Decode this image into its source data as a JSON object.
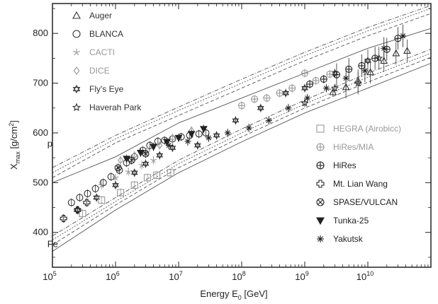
{
  "chart_data": {
    "type": "scatter",
    "xlabel": {
      "main": "Energy E",
      "sub": "0",
      "unit": " [GeV]"
    },
    "ylabel": {
      "main": "X",
      "sub": "max",
      "unit": " [g/cm",
      "sup": "2",
      "close": "]"
    },
    "xscale": "log",
    "xlim": [
      100000,
      100000000000
    ],
    "ylim": [
      330,
      860
    ],
    "x_ticks": [
      {
        "base": "10",
        "exp": "5",
        "value": 100000
      },
      {
        "base": "10",
        "exp": "6",
        "value": 1000000
      },
      {
        "base": "10",
        "exp": "7",
        "value": 10000000
      },
      {
        "base": "10",
        "exp": "8",
        "value": 100000000
      },
      {
        "base": "10",
        "exp": "9",
        "value": 1000000000
      },
      {
        "base": "10",
        "exp": "10",
        "value": 10000000000
      }
    ],
    "y_ticks": [
      "400",
      "500",
      "600",
      "700",
      "800"
    ],
    "y_tick_values": [
      400,
      500,
      600,
      700,
      800
    ],
    "annotations": [
      {
        "text": "p",
        "x": 180000,
        "y": 578
      },
      {
        "text": "Fe",
        "x": 180000,
        "y": 376
      }
    ],
    "legend_left": [
      {
        "label": "Auger",
        "marker": "triangle",
        "color": "#333333"
      },
      {
        "label": "BLANCA",
        "marker": "circle",
        "color": "#333333"
      },
      {
        "label": "CACTI",
        "marker": "asterisk5",
        "color": "#999999"
      },
      {
        "label": "DICE",
        "marker": "diamond",
        "color": "#999999"
      },
      {
        "label": "Fly's Eye",
        "marker": "star6",
        "color": "#333333"
      },
      {
        "label": "Haverah Park",
        "marker": "star5",
        "color": "#333333"
      }
    ],
    "legend_right": [
      {
        "label": "HEGRA (Airobicc)",
        "marker": "square",
        "color": "#999999"
      },
      {
        "label": "HiRes/MIA",
        "marker": "circleplus",
        "color": "#999999"
      },
      {
        "label": "HiRes",
        "marker": "circleplus",
        "color": "#222222"
      },
      {
        "label": "Mt. Lian Wang",
        "marker": "cross",
        "color": "#222222"
      },
      {
        "label": "SPASE/VULCAN",
        "marker": "circlex",
        "color": "#222222"
      },
      {
        "label": "Tunka-25",
        "marker": "invtriangle",
        "color": "#222222"
      },
      {
        "label": "Yakutsk",
        "marker": "asterisk",
        "color": "#222222"
      }
    ],
    "proton_curves": [
      [
        [
          100000,
          500
        ],
        [
          1000000,
          552
        ],
        [
          10000000,
          620
        ],
        [
          100000000,
          670
        ],
        [
          1000000000,
          720
        ],
        [
          10000000000,
          770
        ],
        [
          100000000000,
          810
        ]
      ],
      [
        [
          100000,
          510
        ],
        [
          1000000,
          580
        ],
        [
          10000000,
          635
        ],
        [
          100000000,
          690
        ],
        [
          1000000000,
          745
        ],
        [
          10000000000,
          795
        ],
        [
          100000000000,
          840
        ]
      ],
      [
        [
          100000,
          520
        ],
        [
          1000000,
          588
        ],
        [
          10000000,
          645
        ],
        [
          100000000,
          700
        ],
        [
          1000000000,
          755
        ],
        [
          10000000000,
          805
        ],
        [
          100000000000,
          850
        ]
      ],
      [
        [
          100000,
          530
        ],
        [
          1000000,
          595
        ],
        [
          10000000,
          652
        ],
        [
          100000000,
          708
        ],
        [
          1000000000,
          762
        ],
        [
          10000000000,
          812
        ],
        [
          100000000000,
          856
        ]
      ]
    ],
    "iron_curves": [
      [
        [
          100000,
          362
        ],
        [
          1000000,
          445
        ],
        [
          10000000,
          520
        ],
        [
          100000000,
          582
        ],
        [
          1000000000,
          640
        ],
        [
          10000000000,
          690
        ],
        [
          100000000000,
          740
        ]
      ],
      [
        [
          100000,
          375
        ],
        [
          1000000,
          455
        ],
        [
          10000000,
          530
        ],
        [
          100000000,
          592
        ],
        [
          1000000000,
          650
        ],
        [
          10000000000,
          702
        ],
        [
          100000000000,
          752
        ]
      ],
      [
        [
          100000,
          385
        ],
        [
          1000000,
          462
        ],
        [
          10000000,
          538
        ],
        [
          100000000,
          600
        ],
        [
          1000000000,
          658
        ],
        [
          10000000000,
          712
        ],
        [
          100000000000,
          760
        ]
      ],
      [
        [
          100000,
          393
        ],
        [
          1000000,
          470
        ],
        [
          10000000,
          545
        ],
        [
          100000000,
          608
        ],
        [
          1000000000,
          666
        ],
        [
          10000000000,
          720
        ],
        [
          100000000000,
          768
        ]
      ]
    ],
    "series": [
      {
        "name": "Auger",
        "marker": "triangle",
        "color": "#333333",
        "points": [
          [
            2800000000,
            682
          ],
          [
            4500000000,
            692
          ],
          [
            7000000000,
            705
          ],
          [
            11000000000,
            722
          ],
          [
            18000000000,
            745
          ],
          [
            28000000000,
            760
          ],
          [
            42000000000,
            765
          ]
        ]
      },
      {
        "name": "BLANCA",
        "marker": "circle",
        "color": "#333333",
        "points": [
          [
            200000,
            460
          ],
          [
            270000,
            470
          ],
          [
            360000,
            478
          ],
          [
            480000,
            488
          ],
          [
            640000,
            500
          ],
          [
            850000,
            512
          ],
          [
            1150000,
            525
          ],
          [
            1500000,
            540
          ],
          [
            2000000,
            552
          ],
          [
            2700000,
            565
          ],
          [
            3500000,
            575
          ],
          [
            4700000,
            583
          ],
          [
            6000000,
            585
          ],
          [
            8000000,
            588
          ],
          [
            11000000,
            592
          ],
          [
            15000000,
            595
          ],
          [
            21000000,
            598
          ],
          [
            27000000,
            600
          ]
        ]
      },
      {
        "name": "CACTI",
        "marker": "asterisk5",
        "color": "#999999",
        "points": [
          [
            600000,
            495
          ],
          [
            1000000,
            510
          ],
          [
            1600000,
            522
          ],
          [
            2600000,
            535
          ],
          [
            4000000,
            545
          ]
        ]
      },
      {
        "name": "DICE",
        "marker": "diamond",
        "color": "#999999",
        "points": [
          [
            1200000,
            545
          ],
          [
            2000000,
            555
          ],
          [
            3200000,
            565
          ],
          [
            5000000,
            575
          ],
          [
            8000000,
            590
          ],
          [
            16000000,
            605
          ]
        ]
      },
      {
        "name": "Fly's Eye",
        "marker": "star6",
        "color": "#333333",
        "points": [
          [
            250000,
            445
          ],
          [
            500000,
            470
          ],
          [
            1000000,
            495
          ],
          [
            2000000,
            520
          ],
          [
            3000000,
            538
          ],
          [
            5000000,
            555
          ],
          [
            8000000,
            570
          ],
          [
            20000000,
            575
          ],
          [
            40000000,
            595
          ],
          [
            80000000,
            625
          ],
          [
            200000000,
            650
          ],
          [
            500000000,
            680
          ],
          [
            1000000000,
            690
          ],
          [
            3000000000,
            720
          ],
          [
            10000000000,
            745
          ]
        ]
      },
      {
        "name": "Haverah Park",
        "marker": "star5",
        "color": "#333333",
        "points": [
          [
            1000000000,
            660
          ],
          [
            3000000000,
            690
          ],
          [
            7000000000,
            700
          ],
          [
            15000000000,
            750
          ]
        ]
      },
      {
        "name": "HEGRA (Airobicc)",
        "marker": "square",
        "color": "#999999",
        "points": [
          [
            300000,
            438
          ],
          [
            600000,
            465
          ],
          [
            1200000,
            480
          ],
          [
            2000000,
            495
          ],
          [
            3200000,
            510
          ],
          [
            4500000,
            515
          ],
          [
            7500000,
            520
          ]
        ]
      },
      {
        "name": "HiRes/MIA",
        "marker": "circleplus",
        "color": "#999999",
        "points": [
          [
            100000000,
            655
          ],
          [
            160000000,
            668
          ],
          [
            250000000,
            670
          ],
          [
            400000000,
            680
          ],
          [
            630000000,
            690
          ],
          [
            1000000000,
            720
          ],
          [
            1500000000,
            705
          ],
          [
            2500000000,
            718
          ]
        ]
      },
      {
        "name": "HiRes",
        "marker": "circleplus",
        "color": "#222222",
        "points": [
          [
            1200000000,
            698
          ],
          [
            2000000000,
            708
          ],
          [
            3200000000,
            717
          ],
          [
            5000000000,
            728
          ],
          [
            8000000000,
            735
          ],
          [
            13000000000,
            750
          ],
          [
            20000000000,
            768
          ],
          [
            30000000000,
            790
          ]
        ]
      },
      {
        "name": "Mt. Lian Wang",
        "marker": "cross",
        "color": "#222222",
        "points": [
          [
            150000,
            428
          ],
          [
            250000,
            445
          ],
          [
            350000,
            460
          ]
        ]
      },
      {
        "name": "SPASE/VULCAN",
        "marker": "circlex",
        "color": "#222222",
        "points": [
          [
            1100000,
            530
          ],
          [
            1800000,
            545
          ],
          [
            3000000,
            558
          ]
        ]
      },
      {
        "name": "Tunka-25",
        "marker": "invtriangle",
        "color": "#222222",
        "points": [
          [
            1500000,
            548
          ],
          [
            2500000,
            560
          ],
          [
            4000000,
            572
          ],
          [
            6500000,
            582
          ],
          [
            10000000,
            590
          ],
          [
            16000000,
            598
          ],
          [
            25000000,
            608
          ]
        ]
      },
      {
        "name": "Yakutsk",
        "marker": "asterisk",
        "color": "#222222",
        "points": [
          [
            7000000,
            575
          ],
          [
            14000000,
            583
          ],
          [
            30000000,
            590
          ],
          [
            60000000,
            600
          ],
          [
            130000000,
            610
          ],
          [
            270000000,
            625
          ],
          [
            550000000,
            650
          ],
          [
            1100000000,
            670
          ],
          [
            2200000000,
            690
          ],
          [
            4500000000,
            710
          ],
          [
            9000000000,
            725
          ],
          [
            18000000000,
            770
          ],
          [
            36000000000,
            795
          ]
        ]
      }
    ]
  }
}
